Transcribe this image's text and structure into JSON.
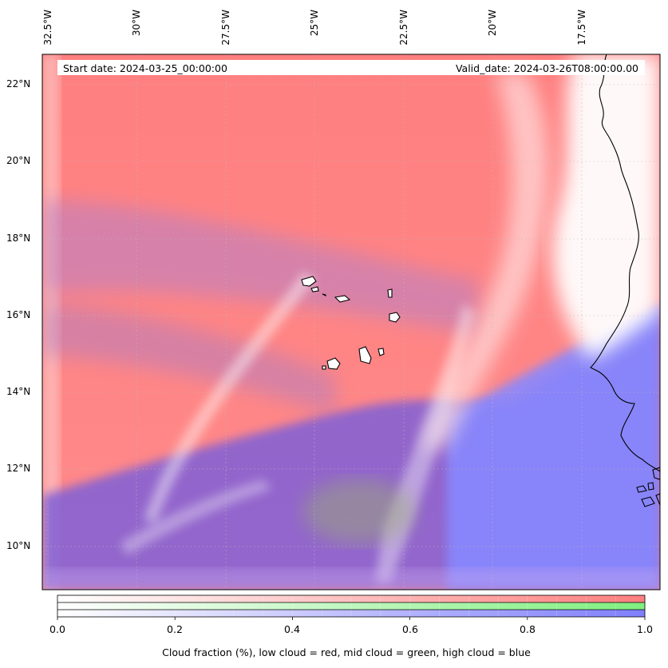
{
  "header": {
    "start_date": "Start date: 2024-03-25_00:00:00",
    "valid_date": "Valid_date: 2024-03-26T08:00:00.00"
  },
  "map": {
    "lon_labels": [
      "32.5°W",
      "30°W",
      "27.5°W",
      "25°W",
      "22.5°W",
      "20°W",
      "17.5°W"
    ],
    "lat_labels": [
      "22°N",
      "20°N",
      "18°N",
      "16°N",
      "14°N",
      "12°N",
      "10°N"
    ],
    "colors": {
      "low_cloud": "#ff7f7f",
      "mid_cloud": "#7fef7f",
      "high_cloud": "#7f7fff",
      "coastline": "#000000"
    }
  },
  "colorbar": {
    "ticks": [
      "0.0",
      "0.2",
      "0.4",
      "0.6",
      "0.8",
      "1.0"
    ],
    "label": "Cloud fraction (%), low cloud = red, mid cloud = green, high cloud = blue"
  }
}
